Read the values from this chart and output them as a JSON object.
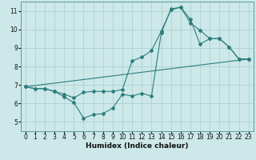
{
  "xlabel": "Humidex (Indice chaleur)",
  "xlim": [
    -0.5,
    23.5
  ],
  "ylim": [
    4.5,
    11.5
  ],
  "xticks": [
    0,
    1,
    2,
    3,
    4,
    5,
    6,
    7,
    8,
    9,
    10,
    11,
    12,
    13,
    14,
    15,
    16,
    17,
    18,
    19,
    20,
    21,
    22,
    23
  ],
  "yticks": [
    5,
    6,
    7,
    8,
    9,
    10,
    11
  ],
  "bg_color": "#cce8e8",
  "grid_color": "#aacccc",
  "line_color": "#2e7d7d",
  "line1_x": [
    0,
    1,
    2,
    3,
    4,
    5,
    6,
    7,
    8,
    9,
    10,
    11,
    12,
    13,
    14,
    15,
    16,
    17,
    18,
    19,
    20,
    21,
    22,
    23
  ],
  "line1_y": [
    6.9,
    6.8,
    6.8,
    6.65,
    6.35,
    6.05,
    5.2,
    5.4,
    5.45,
    5.75,
    6.5,
    6.4,
    6.55,
    6.4,
    9.8,
    11.1,
    11.2,
    10.35,
    9.95,
    9.5,
    9.5,
    9.05,
    8.4,
    8.4
  ],
  "line2_x": [
    0,
    1,
    2,
    3,
    4,
    5,
    6,
    7,
    8,
    9,
    10,
    11,
    12,
    13,
    14,
    15,
    16,
    17,
    18,
    19,
    20,
    21,
    22,
    23
  ],
  "line2_y": [
    6.9,
    6.8,
    6.8,
    6.65,
    6.5,
    6.3,
    6.6,
    6.65,
    6.65,
    6.65,
    6.75,
    8.3,
    8.5,
    8.85,
    9.9,
    11.05,
    11.2,
    10.55,
    9.2,
    9.5,
    9.5,
    9.05,
    8.4,
    8.4
  ],
  "line3_x": [
    0,
    23
  ],
  "line3_y": [
    6.9,
    8.4
  ],
  "tick_fontsize": 5.5,
  "xlabel_fontsize": 6.5
}
